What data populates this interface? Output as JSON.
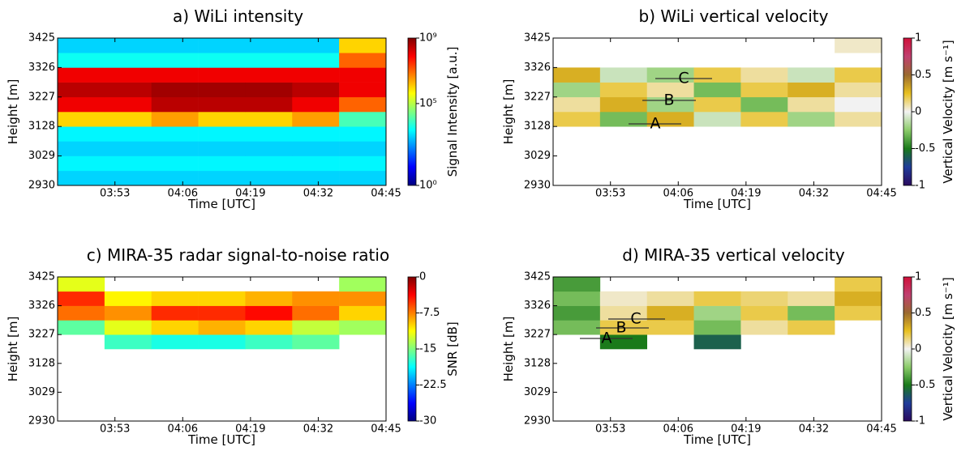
{
  "chart_data": [
    {
      "type": "heatmap",
      "title": "a) WiLi intensity",
      "xlabel": "Time [UTC]",
      "ylabel": "Height [m]",
      "x_edges": [
        222,
        231,
        240,
        249,
        258,
        267,
        276,
        285
      ],
      "y_edges": [
        2930,
        2979.5,
        3029,
        3078.5,
        3128,
        3177.5,
        3227,
        3276.5,
        3326,
        3375.5,
        3425
      ],
      "z": [
        [
          1000,
          1000,
          1000,
          1000,
          1000,
          1000,
          1000
        ],
        [
          2000,
          2000,
          2000,
          2000,
          2000,
          2000,
          2000
        ],
        [
          1000,
          1000,
          1000,
          1000,
          1000,
          1000,
          1000
        ],
        [
          2000,
          2000,
          2000,
          2000,
          2000,
          2000,
          2000
        ],
        [
          1000000,
          1000000,
          3000000,
          1000000,
          1000000,
          3000000,
          10000
        ],
        [
          100000000,
          100000000,
          300000000,
          300000000,
          300000000,
          100000000,
          10000000
        ],
        [
          300000000,
          300000000,
          500000000,
          500000000,
          500000000,
          300000000,
          100000000
        ],
        [
          100000000,
          100000000,
          100000000,
          100000000,
          100000000,
          100000000,
          100000000
        ],
        [
          3000,
          3000,
          3000,
          3000,
          3000,
          3000,
          10000000
        ],
        [
          1000,
          1000,
          1000,
          1000,
          1000,
          1000,
          1000000
        ]
      ],
      "xlim": [
        222,
        285
      ],
      "ylim": [
        2930,
        3425
      ],
      "xticks": [
        {
          "value": 233,
          "label": "03:53"
        },
        {
          "value": 246,
          "label": "04:06"
        },
        {
          "value": 259,
          "label": "04:19"
        },
        {
          "value": 272,
          "label": "04:32"
        },
        {
          "value": 285,
          "label": "04:45"
        }
      ],
      "yticks": [
        2930,
        3029,
        3128,
        3227,
        3326,
        3425
      ],
      "colorbar": {
        "label": "Signal Intensity [a.u.]",
        "lim": [
          1,
          1000000000
        ],
        "log": true,
        "ticks": [
          {
            "value": 1,
            "label": "10⁰"
          },
          {
            "value": 100000,
            "label": "10⁵"
          },
          {
            "value": 1000000000,
            "label": "10⁹"
          }
        ],
        "colormap": [
          "#00007f",
          "#0000ff",
          "#007fff",
          "#00ffff",
          "#7fff7f",
          "#ffff00",
          "#ff7f00",
          "#ff0000",
          "#7f0000"
        ]
      }
    },
    {
      "type": "heatmap",
      "title": "b) WiLi vertical velocity",
      "xlabel": "Time [UTC]",
      "ylabel": "Height [m]",
      "x_edges": [
        222,
        231,
        240,
        249,
        258,
        267,
        276,
        285
      ],
      "y_edges": [
        2930,
        2979.5,
        3029,
        3078.5,
        3128,
        3177.5,
        3227,
        3276.5,
        3326,
        3375.5,
        3425
      ],
      "z": [
        [
          null,
          null,
          null,
          null,
          null,
          null,
          null
        ],
        [
          null,
          null,
          null,
          null,
          null,
          null,
          null
        ],
        [
          null,
          null,
          null,
          null,
          null,
          null,
          null
        ],
        [
          null,
          null,
          null,
          null,
          null,
          null,
          null
        ],
        [
          0.2,
          -0.3,
          0.3,
          -0.1,
          0.2,
          -0.2,
          0.1
        ],
        [
          0.1,
          0.3,
          -0.2,
          0.2,
          -0.3,
          0.1,
          0.0
        ],
        [
          -0.2,
          0.2,
          0.1,
          -0.3,
          0.2,
          0.3,
          0.1
        ],
        [
          0.3,
          -0.1,
          -0.2,
          0.2,
          0.1,
          -0.1,
          0.2
        ],
        [
          null,
          null,
          null,
          null,
          null,
          null,
          null
        ],
        [
          null,
          null,
          null,
          null,
          null,
          null,
          0.05
        ]
      ],
      "xlim": [
        222,
        285
      ],
      "ylim": [
        2930,
        3425
      ],
      "xticks": [
        {
          "value": 233,
          "label": "03:53"
        },
        {
          "value": 246,
          "label": "04:06"
        },
        {
          "value": 259,
          "label": "04:19"
        },
        {
          "value": 272,
          "label": "04:32"
        },
        {
          "value": 285,
          "label": "04:45"
        }
      ],
      "yticks": [
        2930,
        3029,
        3128,
        3227,
        3326,
        3425
      ],
      "annotations": [
        "A",
        "B",
        "C"
      ],
      "colorbar": {
        "label": "Vertical Velocity [m s⁻¹]",
        "lim": [
          -1,
          1
        ],
        "log": false,
        "ticks": [
          -1,
          -0.5,
          0,
          0.5,
          1
        ],
        "colormap": [
          "#2a0a5e",
          "#1f3c9a",
          "#1a7a1a",
          "#8ccc6a",
          "#f2f2f2",
          "#e8c020",
          "#9a6a30",
          "#c04070",
          "#d0103a"
        ]
      }
    },
    {
      "type": "heatmap",
      "title": "c) MIRA-35 radar signal-to-noise ratio",
      "xlabel": "Time [UTC]",
      "ylabel": "Height [m]",
      "x_edges": [
        222,
        231,
        240,
        249,
        258,
        267,
        276,
        285
      ],
      "y_edges": [
        2930,
        2979.5,
        3029,
        3078.5,
        3128,
        3177.5,
        3227,
        3276.5,
        3326,
        3375.5,
        3425
      ],
      "z": [
        [
          null,
          null,
          null,
          null,
          null,
          null,
          null
        ],
        [
          null,
          null,
          null,
          null,
          null,
          null,
          null
        ],
        [
          null,
          null,
          null,
          null,
          null,
          null,
          null
        ],
        [
          null,
          null,
          null,
          null,
          null,
          null,
          null
        ],
        [
          null,
          null,
          null,
          null,
          null,
          null,
          null
        ],
        [
          null,
          -17,
          -18,
          -18,
          -17,
          -16,
          null
        ],
        [
          -16,
          -12,
          -10,
          -9,
          -10,
          -13,
          -14
        ],
        [
          -7,
          -8,
          -5,
          -5,
          -4,
          -7,
          -10
        ],
        [
          -5,
          -11,
          -10,
          -10,
          -9,
          -8,
          -8
        ],
        [
          -12,
          null,
          null,
          null,
          null,
          null,
          -14
        ]
      ],
      "xlim": [
        222,
        285
      ],
      "ylim": [
        2930,
        3425
      ],
      "xticks": [
        {
          "value": 233,
          "label": "03:53"
        },
        {
          "value": 246,
          "label": "04:06"
        },
        {
          "value": 259,
          "label": "04:19"
        },
        {
          "value": 272,
          "label": "04:32"
        },
        {
          "value": 285,
          "label": "04:45"
        }
      ],
      "yticks": [
        2930,
        3029,
        3128,
        3227,
        3326,
        3425
      ],
      "colorbar": {
        "label": "SNR [dB]",
        "lim": [
          -30,
          0
        ],
        "log": false,
        "ticks": [
          0,
          -7.5,
          -15,
          -22.5,
          -30
        ],
        "colormap": [
          "#00007f",
          "#0000ff",
          "#007fff",
          "#00ffff",
          "#7fff7f",
          "#ffff00",
          "#ff7f00",
          "#ff0000",
          "#7f0000"
        ]
      }
    },
    {
      "type": "heatmap",
      "title": "d) MIRA-35 vertical velocity",
      "xlabel": "Time [UTC]",
      "ylabel": "Height [m]",
      "x_edges": [
        222,
        231,
        240,
        249,
        258,
        267,
        276,
        285
      ],
      "y_edges": [
        2930,
        2979.5,
        3029,
        3078.5,
        3128,
        3177.5,
        3227,
        3276.5,
        3326,
        3375.5,
        3425
      ],
      "z": [
        [
          null,
          null,
          null,
          null,
          null,
          null,
          null
        ],
        [
          null,
          null,
          null,
          null,
          null,
          null,
          null
        ],
        [
          null,
          null,
          null,
          null,
          null,
          null,
          null
        ],
        [
          null,
          null,
          null,
          null,
          null,
          null,
          null
        ],
        [
          null,
          null,
          null,
          null,
          null,
          null,
          null
        ],
        [
          null,
          -0.5,
          null,
          -0.6,
          null,
          null,
          null
        ],
        [
          -0.3,
          0.2,
          0.2,
          -0.3,
          0.1,
          0.2,
          null
        ],
        [
          -0.4,
          0.1,
          0.3,
          -0.2,
          0.2,
          -0.3,
          0.2
        ],
        [
          -0.3,
          0.05,
          0.1,
          0.2,
          0.15,
          0.1,
          0.3
        ],
        [
          -0.4,
          null,
          null,
          null,
          null,
          null,
          0.2
        ]
      ],
      "xlim": [
        222,
        285
      ],
      "ylim": [
        2930,
        3425
      ],
      "xticks": [
        {
          "value": 233,
          "label": "03:53"
        },
        {
          "value": 246,
          "label": "04:06"
        },
        {
          "value": 259,
          "label": "04:19"
        },
        {
          "value": 272,
          "label": "04:32"
        },
        {
          "value": 285,
          "label": "04:45"
        }
      ],
      "yticks": [
        2930,
        3029,
        3128,
        3227,
        3326,
        3425
      ],
      "annotations": [
        "A",
        "B",
        "C"
      ],
      "colorbar": {
        "label": "Vertical Velocity [m s⁻¹]",
        "lim": [
          -1,
          1
        ],
        "log": false,
        "ticks": [
          -1,
          -0.5,
          0,
          0.5,
          1
        ],
        "colormap": [
          "#2a0a5e",
          "#1f3c9a",
          "#1a7a1a",
          "#8ccc6a",
          "#f2f2f2",
          "#e8c020",
          "#9a6a30",
          "#c04070",
          "#d0103a"
        ]
      }
    }
  ]
}
